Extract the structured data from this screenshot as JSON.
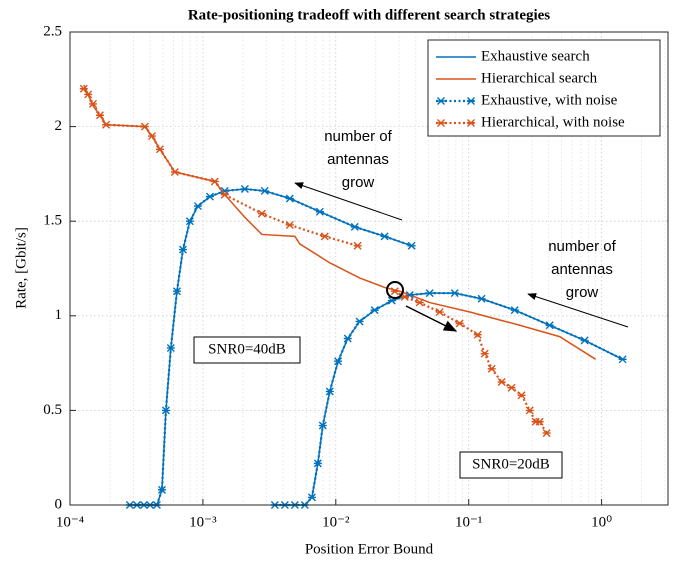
{
  "chart_data": {
    "type": "line",
    "title": "Rate-positioning tradeoff with different search strategies",
    "xlabel": "Position Error Bound",
    "ylabel": "Rate, [Gbit/s]",
    "xscale": "log",
    "xlim": [
      0.0001,
      3.16
    ],
    "xticks": [
      {
        "value": 0.0001,
        "label": "10⁻⁴"
      },
      {
        "value": 0.001,
        "label": "10⁻³"
      },
      {
        "value": 0.01,
        "label": "10⁻²"
      },
      {
        "value": 0.1,
        "label": "10⁻¹"
      },
      {
        "value": 1,
        "label": "10⁰"
      }
    ],
    "ylim": [
      0,
      2.5
    ],
    "yticks": [
      0,
      0.5,
      1,
      1.5,
      2,
      2.5
    ],
    "grid": true,
    "legend": "upper right",
    "series": [
      {
        "name": "Exhaustive search",
        "color": "#0072bd",
        "style": "solid",
        "marker": false,
        "x": [
          0.000282,
          0.000319,
          0.00036,
          0.0004,
          0.000451,
          0.000492,
          0.000527,
          0.000574,
          0.000638,
          0.000708,
          0.000798,
          0.000917,
          0.00113,
          0.00146,
          0.00207,
          0.00292,
          0.00451,
          0.00759,
          0.0139,
          0.0233,
          0.0372,
          null,
          0.00348,
          0.00414,
          0.00492,
          0.00585,
          0.00661,
          0.00733,
          0.00798,
          0.00901,
          0.0104,
          0.0123,
          0.0151,
          0.0196,
          0.0264,
          0.036,
          0.0509,
          0.0785,
          0.125,
          0.222,
          0.407,
          0.745,
          1.44
        ],
        "values": [
          0,
          0,
          0,
          0,
          0,
          0.08,
          0.5,
          0.83,
          1.13,
          1.35,
          1.5,
          1.58,
          1.63,
          1.66,
          1.67,
          1.66,
          1.62,
          1.55,
          1.47,
          1.42,
          1.37,
          null,
          0,
          0,
          0,
          0,
          0.04,
          0.22,
          0.42,
          0.6,
          0.76,
          0.88,
          0.97,
          1.03,
          1.08,
          1.11,
          1.12,
          1.12,
          1.09,
          1.03,
          0.95,
          0.87,
          0.77
        ]
      },
      {
        "name": "Hierarchical search",
        "color": "#d95319",
        "style": "solid",
        "marker": false,
        "x": [
          0.000127,
          0.000137,
          0.000149,
          0.000168,
          0.000187,
          0.000366,
          0.000414,
          0.000475,
          0.000615,
          0.00123,
          0.00146,
          0.00207,
          0.00278,
          0.00492,
          0.00536,
          0.00901,
          0.0151,
          0.0233,
          0.0303,
          0.0509,
          0.102,
          0.242,
          0.483,
          0.902
        ],
        "values": [
          2.22,
          2.17,
          2.11,
          2.06,
          2.01,
          2.0,
          1.95,
          1.88,
          1.76,
          1.71,
          1.64,
          1.52,
          1.43,
          1.42,
          1.38,
          1.28,
          1.2,
          1.15,
          1.13,
          1.07,
          1.02,
          0.95,
          0.89,
          0.77
        ]
      },
      {
        "name": "Exhaustive, with noise",
        "color": "#0072bd",
        "style": "dotted",
        "marker": true,
        "x": [
          0.000282,
          0.000319,
          0.00036,
          0.0004,
          0.000451,
          0.000492,
          0.000527,
          0.000574,
          0.000638,
          0.000708,
          0.000798,
          0.000917,
          0.00113,
          0.00146,
          0.00207,
          0.00292,
          0.00451,
          0.00759,
          0.0139,
          0.0233,
          0.0372,
          null,
          0.00348,
          0.00414,
          0.00492,
          0.00585,
          0.00661,
          0.00733,
          0.00798,
          0.00901,
          0.0104,
          0.0123,
          0.0151,
          0.0196,
          0.0264,
          0.036,
          0.0509,
          0.0785,
          0.125,
          0.222,
          0.407,
          0.745,
          1.44
        ],
        "values": [
          0,
          0,
          0,
          0,
          0,
          0.08,
          0.5,
          0.83,
          1.13,
          1.35,
          1.5,
          1.58,
          1.63,
          1.66,
          1.67,
          1.66,
          1.62,
          1.55,
          1.47,
          1.42,
          1.37,
          null,
          0,
          0,
          0,
          0,
          0.04,
          0.22,
          0.42,
          0.6,
          0.76,
          0.88,
          0.97,
          1.03,
          1.08,
          1.11,
          1.12,
          1.12,
          1.09,
          1.03,
          0.95,
          0.87,
          0.77
        ]
      },
      {
        "name": "Hierarchical, with noise",
        "color": "#d95319",
        "style": "dotted",
        "marker": true,
        "x": [
          0.000127,
          0.000137,
          0.000149,
          0.000168,
          0.000187,
          0.000366,
          0.000414,
          0.000475,
          0.000615,
          0.00123,
          0.00146,
          0.00278,
          0.00451,
          0.00826,
          0.0146,
          null,
          0.0278,
          0.033,
          0.0428,
          0.0605,
          0.0855,
          0.117,
          0.132,
          0.149,
          0.177,
          0.21,
          0.25,
          0.288,
          0.319,
          0.342,
          0.386
        ],
        "values": [
          2.2,
          2.17,
          2.12,
          2.06,
          2.01,
          2.0,
          1.95,
          1.88,
          1.76,
          1.71,
          1.64,
          1.54,
          1.48,
          1.42,
          1.37,
          null,
          1.13,
          1.1,
          1.07,
          1.02,
          0.96,
          0.9,
          0.8,
          0.72,
          0.65,
          0.62,
          0.58,
          0.5,
          0.44,
          0.44,
          0.38
        ]
      }
    ],
    "annotations": [
      {
        "lines": [
          "number of",
          "antennas",
          "grow"
        ]
      },
      {
        "lines": [
          "number of",
          "antennas",
          "grow"
        ]
      },
      {
        "text": "SNR0=40dB"
      },
      {
        "text": "SNR0=20dB"
      }
    ]
  }
}
